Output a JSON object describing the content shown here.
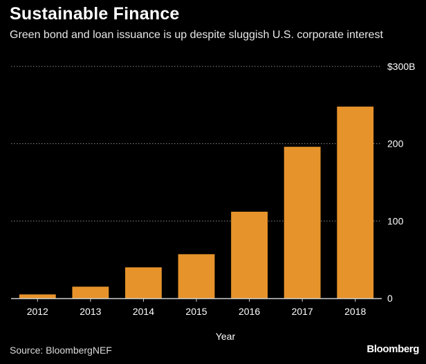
{
  "header": {
    "title": "Sustainable Finance",
    "subtitle": "Green bond and loan issuance is up despite sluggish U.S. corporate interest"
  },
  "footer": {
    "source": "Source: BloombergNEF",
    "brand": "Bloomberg"
  },
  "colors": {
    "bar": "#E6932B",
    "grid": "#8c8c8c",
    "axis": "#d0d0d0",
    "text": "#ffffff"
  },
  "chart_data": {
    "type": "bar",
    "categories": [
      "2012",
      "2013",
      "2014",
      "2015",
      "2016",
      "2017",
      "2018"
    ],
    "values": [
      5,
      15,
      40,
      57,
      112,
      196,
      248
    ],
    "xlabel": "Year",
    "ylabel": "",
    "ylim": [
      0,
      300
    ],
    "yticks": [
      0,
      100,
      200,
      300
    ],
    "ytick_labels": [
      "0",
      "100",
      "200",
      "$300B"
    ],
    "grid": true,
    "grid_style": "dotted"
  }
}
